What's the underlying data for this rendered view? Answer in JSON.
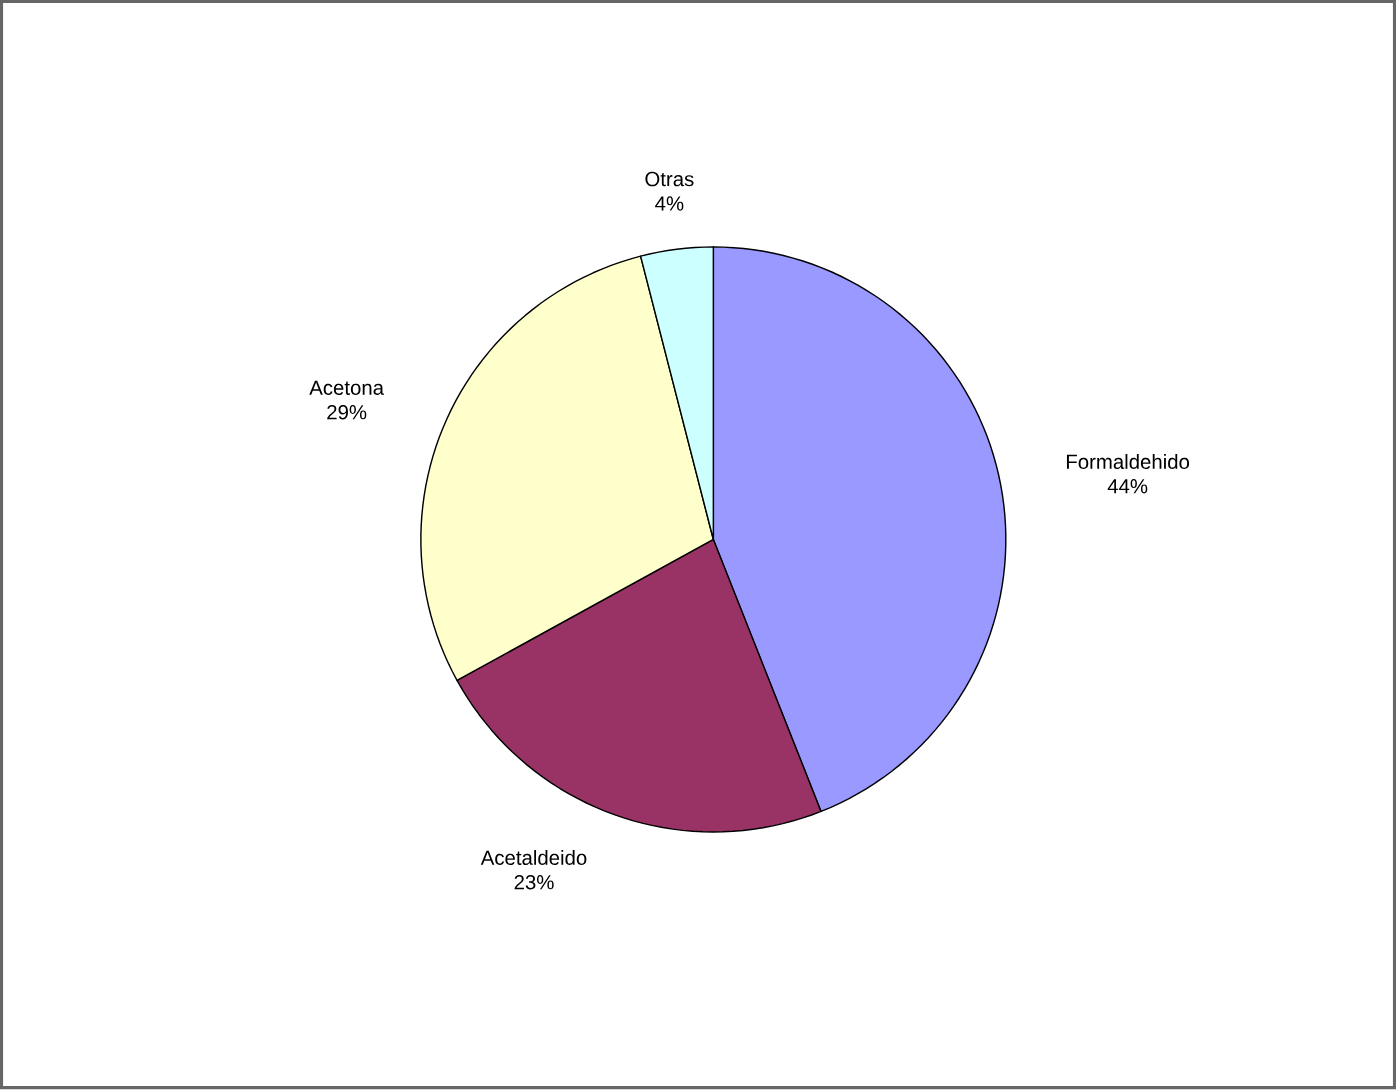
{
  "chart_data": {
    "type": "pie",
    "categories": [
      "Formaldehido",
      "Acetaldeido",
      "Acetona",
      "Otras"
    ],
    "values": [
      44,
      23,
      29,
      4
    ],
    "colors": [
      "#9999ff",
      "#993366",
      "#ffffcc",
      "#ccffff"
    ],
    "value_labels": [
      "44%",
      "23%",
      "29%",
      "4%"
    ]
  }
}
